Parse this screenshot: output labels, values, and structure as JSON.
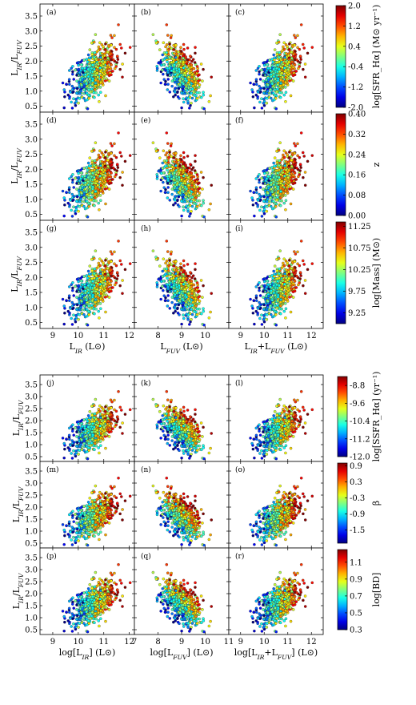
{
  "chart_data": {
    "type": "scatter",
    "figure_parts": [
      {
        "group": "top",
        "rows": [
          {
            "panel_labels": [
              "(a)",
              "(b)",
              "(c)"
            ],
            "colorbar": {
              "label": "log[SFR_Hα] (M⊙ yr⁻¹)",
              "ticks": [
                "2.0",
                "1.2",
                "0.4",
                "-0.4",
                "-1.2",
                "-2.0"
              ],
              "range": [
                -2.0,
                2.0
              ]
            }
          },
          {
            "panel_labels": [
              "(d)",
              "(e)",
              "(f)"
            ],
            "colorbar": {
              "label": "z",
              "ticks": [
                "0.40",
                "0.32",
                "0.24",
                "0.16",
                "0.08",
                "0.00"
              ],
              "range": [
                0.0,
                0.4
              ]
            }
          },
          {
            "panel_labels": [
              "(g)",
              "(h)",
              "(i)"
            ],
            "colorbar": {
              "label": "log[Mass] (M⊙)",
              "ticks": [
                "11.25",
                "10.75",
                "10.25",
                "9.75",
                "9.25"
              ],
              "range": [
                9.0,
                11.35
              ]
            }
          }
        ],
        "ylabel": "L_IR/L_FUV",
        "yticks": [
          "0.5",
          "1.0",
          "1.5",
          "2.0",
          "2.5",
          "3.0",
          "3.5"
        ],
        "ylim": [
          0.3,
          3.9
        ],
        "columns": [
          {
            "xlabel": "L_IR (L⊙)",
            "xticks": [
              "9",
              "10",
              "11",
              "12"
            ],
            "xlim": [
              8.5,
              12.2
            ]
          },
          {
            "xlabel": "L_FUV (L⊙)",
            "xticks": [
              "8",
              "9",
              "10"
            ],
            "xlim": [
              7.0,
              11.0
            ]
          },
          {
            "xlabel": "L_IR+L_FUV (L⊙)",
            "xticks": [
              "9",
              "10",
              "11",
              "12"
            ],
            "xlim": [
              8.5,
              12.5
            ]
          }
        ]
      },
      {
        "group": "bottom",
        "rows": [
          {
            "panel_labels": [
              "(j)",
              "(k)",
              "(l)"
            ],
            "colorbar": {
              "label": "log[SSFR_Hα] (yr⁻¹)",
              "ticks": [
                "-8.8",
                "-9.6",
                "-10.4",
                "-11.2",
                "-12.0"
              ],
              "range": [
                -12.0,
                -8.4
              ]
            }
          },
          {
            "panel_labels": [
              "(m)",
              "(n)",
              "(o)"
            ],
            "colorbar": {
              "label": "β",
              "ticks": [
                "0.9",
                "0.3",
                "-0.3",
                "-0.9",
                "-1.5"
              ],
              "range": [
                -2.0,
                1.0
              ]
            }
          },
          {
            "panel_labels": [
              "(p)",
              "(q)",
              "(r)"
            ],
            "colorbar": {
              "label": "log[BD]",
              "ticks": [
                "1.1",
                "0.9",
                "0.7",
                "0.5",
                "0.3"
              ],
              "range": [
                0.3,
                1.25
              ]
            }
          }
        ],
        "ylabel": "L_IR/L_FUV",
        "yticks": [
          "0.5",
          "1.0",
          "1.5",
          "2.0",
          "2.5",
          "3.0",
          "3.5"
        ],
        "ylim": [
          0.3,
          3.9
        ],
        "columns": [
          {
            "xlabel": "log[L_IR] (L⊙)",
            "xticks": [
              "9",
              "10",
              "11",
              "12"
            ],
            "xlim": [
              8.5,
              12.2
            ]
          },
          {
            "xlabel": "log[L_FUV] (L⊙)",
            "xticks": [
              "7",
              "8",
              "9",
              "10",
              "11"
            ],
            "xlim": [
              7.0,
              11.0
            ]
          },
          {
            "xlabel": "log[L_IR+L_FUV] (L⊙)",
            "xticks": [
              "9",
              "10",
              "11",
              "12"
            ],
            "xlim": [
              8.5,
              12.5
            ]
          }
        ]
      }
    ],
    "point_cloud_summary": {
      "approx_points_per_panel": 600,
      "column_1_center": {
        "x": 10.8,
        "y": 1.6,
        "trend": "positive"
      },
      "column_2_center": {
        "x": 9.0,
        "y": 1.6,
        "trend": "negative"
      },
      "column_3_center": {
        "x": 10.9,
        "y": 1.6,
        "trend": "positive"
      }
    },
    "colormap": "jet",
    "grid": false,
    "legend": "none"
  }
}
